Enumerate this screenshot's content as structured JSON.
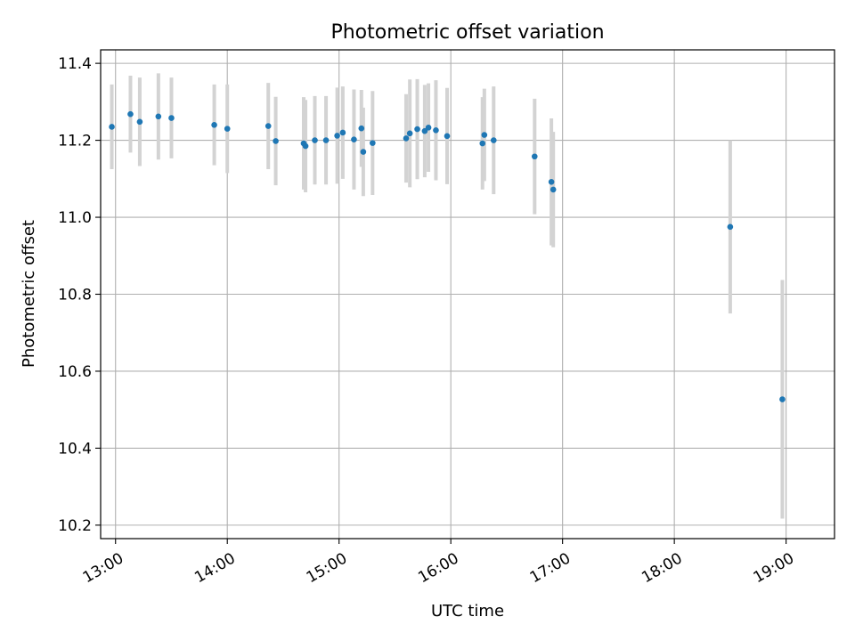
{
  "chart_data": {
    "type": "scatter",
    "title": "Photometric offset variation",
    "xlabel": "UTC time",
    "ylabel": "Photometric offset",
    "x_ticks": [
      "13:00",
      "14:00",
      "15:00",
      "16:00",
      "17:00",
      "18:00",
      "19:00"
    ],
    "y_ticks": [
      "10.2",
      "10.4",
      "10.6",
      "10.8",
      "11.0",
      "11.2",
      "11.4"
    ],
    "xlim": [
      "12:52",
      "19:26"
    ],
    "ylim": [
      10.165,
      11.435
    ],
    "grid": true,
    "series": [
      {
        "x": [
          "12:58",
          "13:08",
          "13:13",
          "13:23",
          "13:30",
          "13:53",
          "14:00",
          "14:22",
          "14:26",
          "14:41",
          "14:42",
          "14:47",
          "14:53",
          "14:59",
          "15:02",
          "15:08",
          "15:12",
          "15:13",
          "15:18",
          "15:36",
          "15:38",
          "15:42",
          "15:46",
          "15:48",
          "15:52",
          "15:58",
          "16:17",
          "16:18",
          "16:23",
          "16:45",
          "16:54",
          "16:55",
          "18:30",
          "18:58"
        ],
        "y": [
          11.235,
          11.268,
          11.248,
          11.262,
          11.258,
          11.24,
          11.23,
          11.237,
          11.198,
          11.192,
          11.185,
          11.2,
          11.2,
          11.212,
          11.22,
          11.202,
          11.231,
          11.17,
          11.193,
          11.205,
          11.218,
          11.229,
          11.224,
          11.233,
          11.226,
          11.211,
          11.192,
          11.214,
          11.2,
          11.158,
          11.092,
          11.072,
          10.975,
          10.527
        ],
        "yerr": [
          0.11,
          0.1,
          0.115,
          0.112,
          0.105,
          0.105,
          0.115,
          0.112,
          0.115,
          0.12,
          0.12,
          0.115,
          0.115,
          0.125,
          0.12,
          0.13,
          0.1,
          0.115,
          0.135,
          0.115,
          0.14,
          0.13,
          0.12,
          0.115,
          0.13,
          0.125,
          0.12,
          0.12,
          0.14,
          0.15,
          0.165,
          0.15,
          0.225,
          0.31
        ]
      }
    ],
    "colors": {
      "point": "#1f77b4",
      "errorbar": "#d3d3d3",
      "grid": "#b0b0b0",
      "axis": "#000000"
    }
  }
}
